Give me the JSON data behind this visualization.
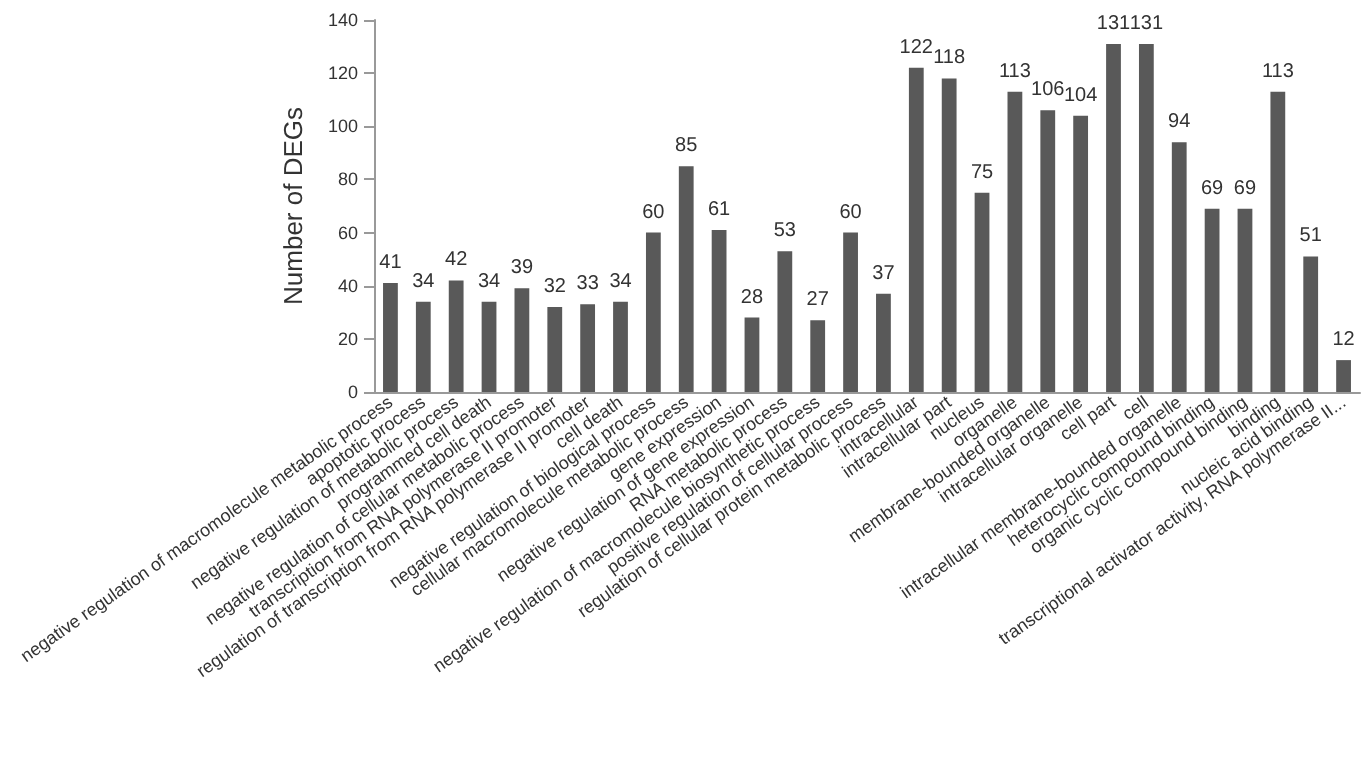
{
  "chart_data": {
    "type": "bar",
    "ylabel": "Number of DEGs",
    "categories": [
      "negative regulation of macromolecule metabolic process",
      "apoptotic process",
      "negative regulation of metabolic process",
      "programmed cell death",
      "negative regulation of cellular metabolic process",
      "transcription from RNA polymerase II promoter",
      "regulation of transcription from RNA polymerase II promoter",
      "cell death",
      "negative regulation of biological process",
      "cellular macromolecule metabolic process",
      "gene expression",
      "negative regulation of gene expression",
      "RNA metabolic process",
      "negative regulation of macromolecule biosynthetic process",
      "positive regulation of cellular process",
      "regulation of cellular protein metabolic process",
      "intracellular",
      "intracellular part",
      "nucleus",
      "organelle",
      "membrane-bounded organelle",
      "intracellular organelle",
      "cell part",
      "cell",
      "intracellular membrane-bounded organelle",
      "heterocyclic compound binding",
      "organic cyclic compound binding",
      "binding",
      "nucleic acid binding",
      "transcriptional activator activity, RNA polymerase II..."
    ],
    "values": [
      41,
      34,
      42,
      34,
      39,
      32,
      33,
      34,
      60,
      85,
      61,
      28,
      53,
      27,
      60,
      37,
      122,
      118,
      75,
      113,
      106,
      104,
      131,
      131,
      94,
      69,
      69,
      113,
      51,
      12
    ],
    "color": "#595959",
    "ylim": [
      0,
      140
    ],
    "yticks": [
      0,
      20,
      40,
      60,
      80,
      100,
      120,
      140
    ],
    "grid": false,
    "data_labels": true
  }
}
